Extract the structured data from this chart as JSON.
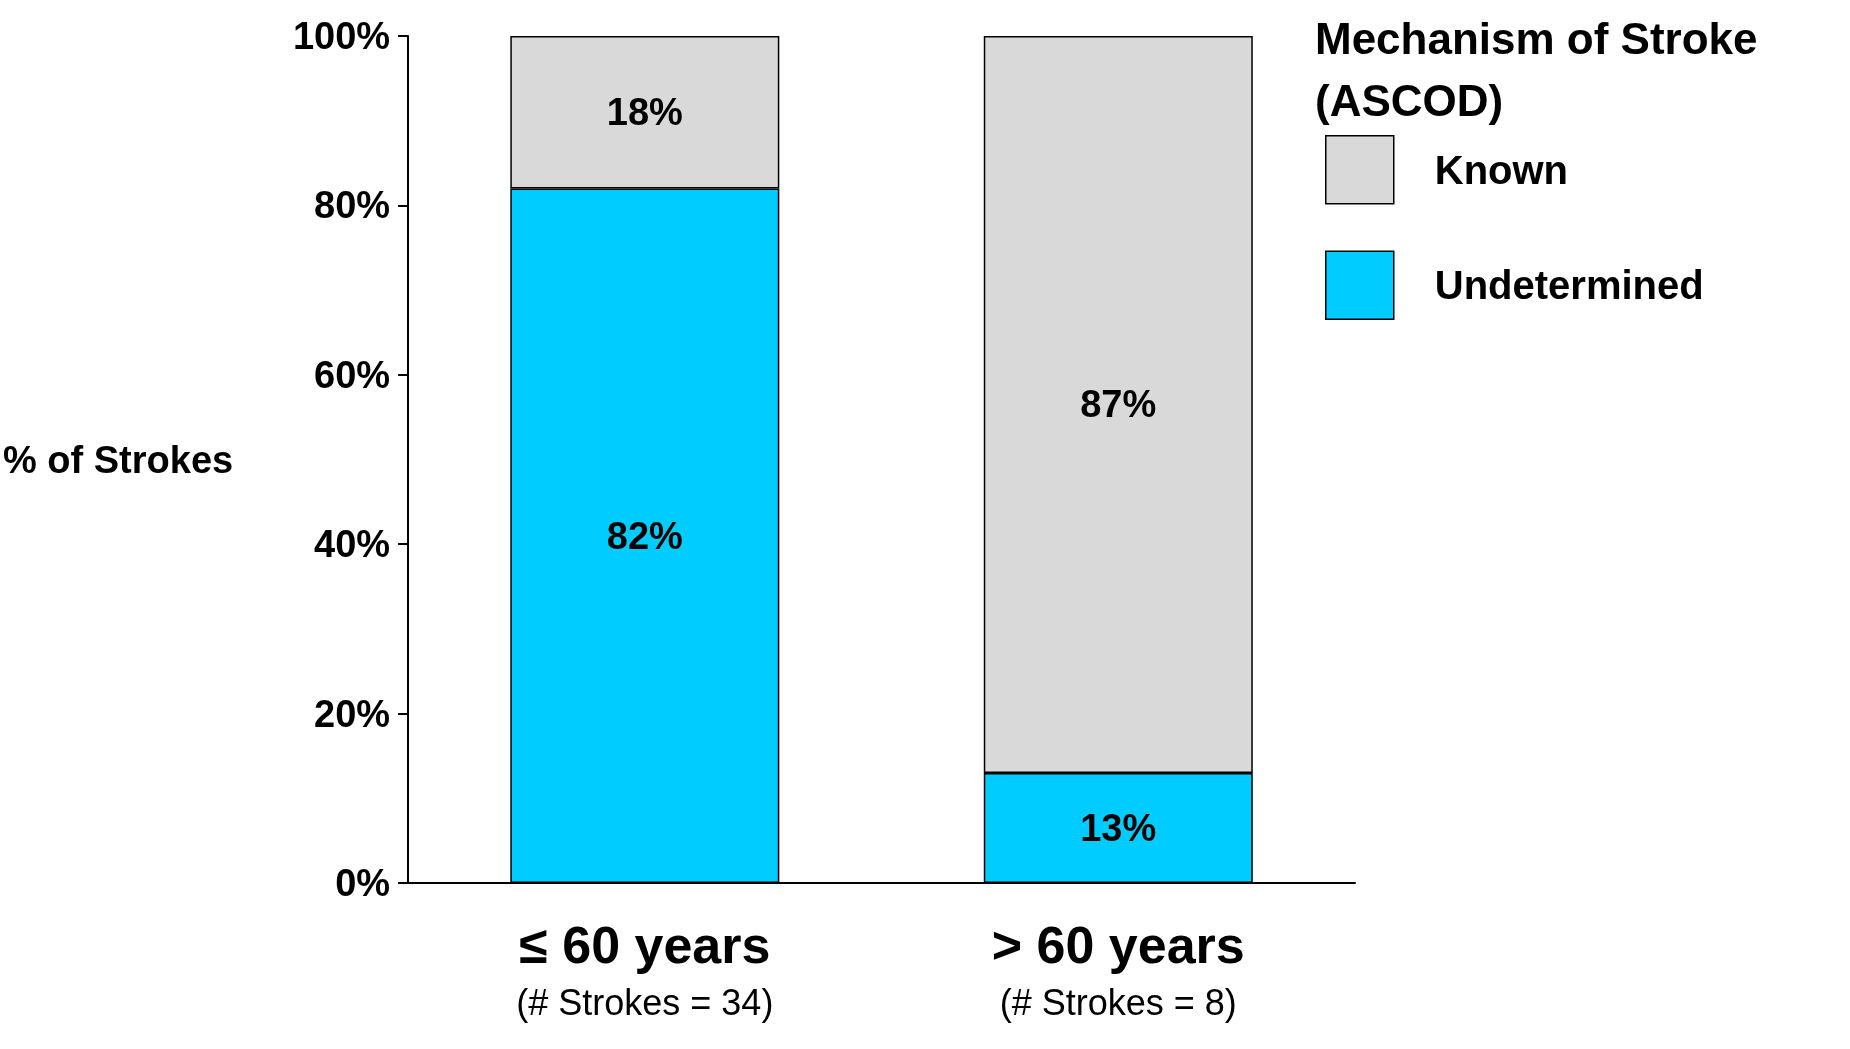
{
  "chart_data": {
    "type": "bar",
    "stacked": true,
    "ylabel": "% of Strokes",
    "legend_title": "Mechanism of Stroke (ASCOD)",
    "legend": "right",
    "categories": [
      "≤ 60 years\n(# Strokes = 34)",
      "> 60 years\n(# Strokes = 8)"
    ],
    "series": [
      {
        "name": "Undetermined",
        "color": "#00ccff",
        "values": [
          82,
          13
        ],
        "value_labels": [
          "82%",
          "13%"
        ]
      },
      {
        "name": "Known",
        "color": "#d9d9d9",
        "values": [
          18,
          87
        ],
        "value_labels": [
          "18%",
          "87%"
        ]
      }
    ],
    "ylim": [
      0,
      100
    ],
    "yticks": [
      {
        "value": 0,
        "label": "0%"
      },
      {
        "value": 20,
        "label": "20%"
      },
      {
        "value": 40,
        "label": "40%"
      },
      {
        "value": 60,
        "label": "60%"
      },
      {
        "value": 80,
        "label": "80%"
      },
      {
        "value": 100,
        "label": "100%"
      }
    ],
    "grid": false
  }
}
